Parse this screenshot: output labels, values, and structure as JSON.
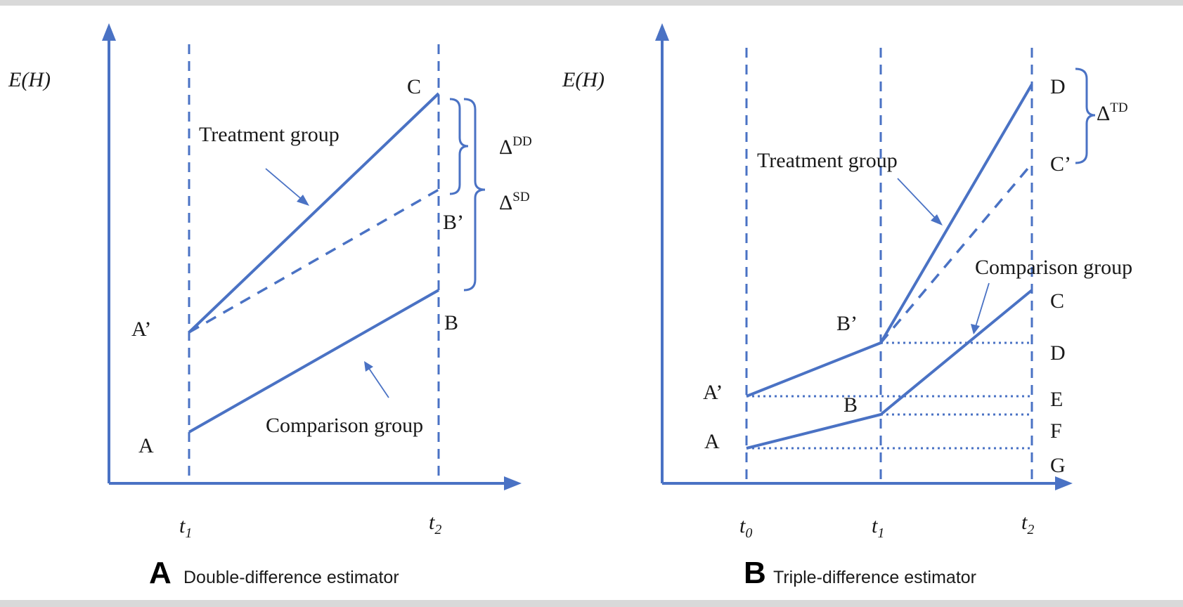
{
  "panel_a": {
    "y_axis_label": "E(H)",
    "x_ticks": [
      "t1",
      "t2"
    ],
    "points": {
      "A": "A",
      "A_prime": "A’",
      "B": "B",
      "B_prime": "B’",
      "C": "C"
    },
    "treatment_label": "Treatment group",
    "comparison_label": "Comparison group",
    "delta_dd": {
      "base": "Δ",
      "sup": "DD"
    },
    "delta_sd": {
      "base": "Δ",
      "sup": "SD"
    },
    "caption_letter": "A",
    "caption_text": "Double-difference estimator"
  },
  "panel_b": {
    "y_axis_label": "E(H)",
    "x_ticks": [
      "t0",
      "t1",
      "t2"
    ],
    "points": {
      "A": "A",
      "A_prime": "A’",
      "B": "B",
      "B_prime": "B’",
      "C_right": "C",
      "C_prime": "C’",
      "D_top": "D",
      "D_mid": "D",
      "E": "E",
      "F": "F",
      "G": "G"
    },
    "treatment_label": "Treatment group",
    "comparison_label": "Comparison group",
    "delta_td": {
      "base": "Δ",
      "sup": "TD"
    },
    "caption_letter": "B",
    "caption_text": "Triple-difference estimator"
  }
}
